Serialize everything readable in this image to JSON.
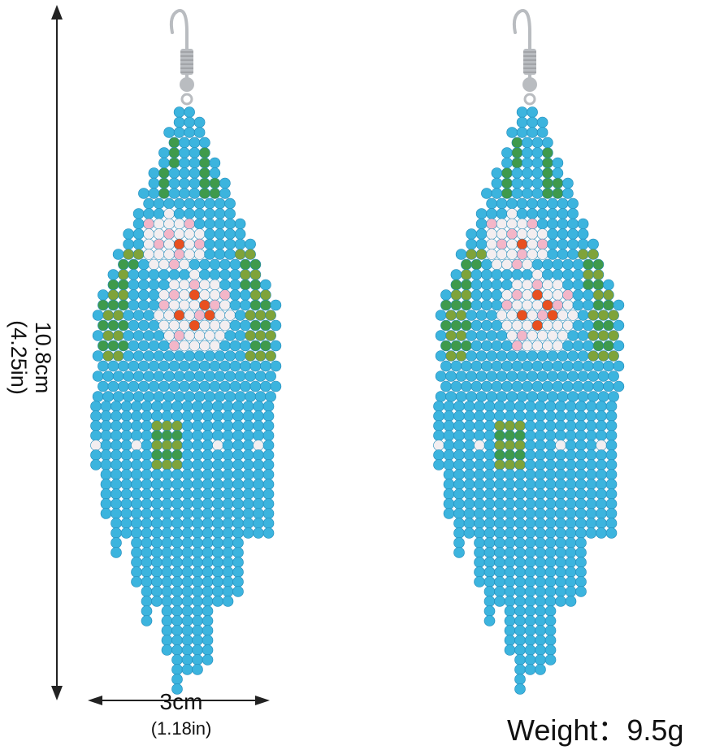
{
  "dimensions": {
    "length_cm": "10.8cm",
    "length_in": "(4.25in)",
    "width_cm": "3cm",
    "width_in": "(1.18in)"
  },
  "weight": {
    "label": "Weight：",
    "value": "9.5g"
  },
  "colors": {
    "bead_blue": "#3cb4de",
    "bead_blue_dark": "#1d88b8",
    "bead_green": "#3f9a4c",
    "bead_olive": "#7fa33a",
    "bead_pink": "#f3b6c8",
    "bead_white": "#f3eef0",
    "bead_orange": "#e8501f",
    "hook_silver": "#b9bcc0"
  },
  "product": {
    "icons": [
      "earring-hook-icon",
      "seed-bead-icon",
      "ruler-arrow-icon"
    ]
  }
}
